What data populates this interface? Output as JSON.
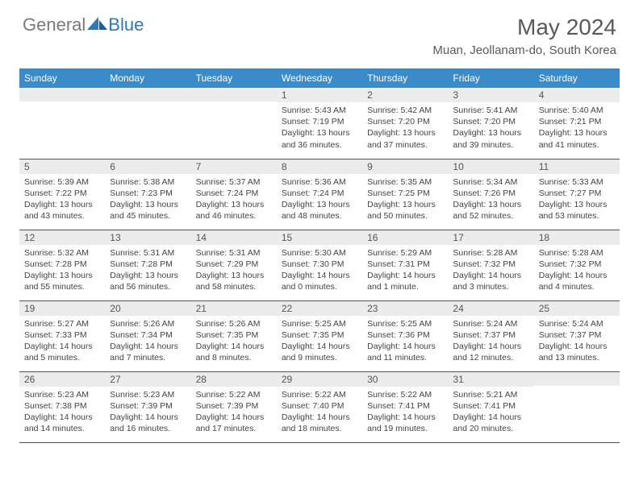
{
  "logo": {
    "general": "General",
    "blue": "Blue"
  },
  "header": {
    "title": "May 2024",
    "location": "Muan, Jeollanam-do, South Korea"
  },
  "colors": {
    "header_bg": "#3b8bc9",
    "header_text": "#ffffff",
    "daynum_bg": "#ececec",
    "border": "#2f5a80",
    "title_color": "#5a5a5a",
    "logo_gray": "#7a7a7a",
    "logo_blue": "#2f77b5"
  },
  "weekdays": [
    "Sunday",
    "Monday",
    "Tuesday",
    "Wednesday",
    "Thursday",
    "Friday",
    "Saturday"
  ],
  "weeks": [
    [
      {
        "day": "",
        "sunrise": "",
        "sunset": "",
        "daylight": ""
      },
      {
        "day": "",
        "sunrise": "",
        "sunset": "",
        "daylight": ""
      },
      {
        "day": "",
        "sunrise": "",
        "sunset": "",
        "daylight": ""
      },
      {
        "day": "1",
        "sunrise": "Sunrise: 5:43 AM",
        "sunset": "Sunset: 7:19 PM",
        "daylight": "Daylight: 13 hours and 36 minutes."
      },
      {
        "day": "2",
        "sunrise": "Sunrise: 5:42 AM",
        "sunset": "Sunset: 7:20 PM",
        "daylight": "Daylight: 13 hours and 37 minutes."
      },
      {
        "day": "3",
        "sunrise": "Sunrise: 5:41 AM",
        "sunset": "Sunset: 7:20 PM",
        "daylight": "Daylight: 13 hours and 39 minutes."
      },
      {
        "day": "4",
        "sunrise": "Sunrise: 5:40 AM",
        "sunset": "Sunset: 7:21 PM",
        "daylight": "Daylight: 13 hours and 41 minutes."
      }
    ],
    [
      {
        "day": "5",
        "sunrise": "Sunrise: 5:39 AM",
        "sunset": "Sunset: 7:22 PM",
        "daylight": "Daylight: 13 hours and 43 minutes."
      },
      {
        "day": "6",
        "sunrise": "Sunrise: 5:38 AM",
        "sunset": "Sunset: 7:23 PM",
        "daylight": "Daylight: 13 hours and 45 minutes."
      },
      {
        "day": "7",
        "sunrise": "Sunrise: 5:37 AM",
        "sunset": "Sunset: 7:24 PM",
        "daylight": "Daylight: 13 hours and 46 minutes."
      },
      {
        "day": "8",
        "sunrise": "Sunrise: 5:36 AM",
        "sunset": "Sunset: 7:24 PM",
        "daylight": "Daylight: 13 hours and 48 minutes."
      },
      {
        "day": "9",
        "sunrise": "Sunrise: 5:35 AM",
        "sunset": "Sunset: 7:25 PM",
        "daylight": "Daylight: 13 hours and 50 minutes."
      },
      {
        "day": "10",
        "sunrise": "Sunrise: 5:34 AM",
        "sunset": "Sunset: 7:26 PM",
        "daylight": "Daylight: 13 hours and 52 minutes."
      },
      {
        "day": "11",
        "sunrise": "Sunrise: 5:33 AM",
        "sunset": "Sunset: 7:27 PM",
        "daylight": "Daylight: 13 hours and 53 minutes."
      }
    ],
    [
      {
        "day": "12",
        "sunrise": "Sunrise: 5:32 AM",
        "sunset": "Sunset: 7:28 PM",
        "daylight": "Daylight: 13 hours and 55 minutes."
      },
      {
        "day": "13",
        "sunrise": "Sunrise: 5:31 AM",
        "sunset": "Sunset: 7:28 PM",
        "daylight": "Daylight: 13 hours and 56 minutes."
      },
      {
        "day": "14",
        "sunrise": "Sunrise: 5:31 AM",
        "sunset": "Sunset: 7:29 PM",
        "daylight": "Daylight: 13 hours and 58 minutes."
      },
      {
        "day": "15",
        "sunrise": "Sunrise: 5:30 AM",
        "sunset": "Sunset: 7:30 PM",
        "daylight": "Daylight: 14 hours and 0 minutes."
      },
      {
        "day": "16",
        "sunrise": "Sunrise: 5:29 AM",
        "sunset": "Sunset: 7:31 PM",
        "daylight": "Daylight: 14 hours and 1 minute."
      },
      {
        "day": "17",
        "sunrise": "Sunrise: 5:28 AM",
        "sunset": "Sunset: 7:32 PM",
        "daylight": "Daylight: 14 hours and 3 minutes."
      },
      {
        "day": "18",
        "sunrise": "Sunrise: 5:28 AM",
        "sunset": "Sunset: 7:32 PM",
        "daylight": "Daylight: 14 hours and 4 minutes."
      }
    ],
    [
      {
        "day": "19",
        "sunrise": "Sunrise: 5:27 AM",
        "sunset": "Sunset: 7:33 PM",
        "daylight": "Daylight: 14 hours and 5 minutes."
      },
      {
        "day": "20",
        "sunrise": "Sunrise: 5:26 AM",
        "sunset": "Sunset: 7:34 PM",
        "daylight": "Daylight: 14 hours and 7 minutes."
      },
      {
        "day": "21",
        "sunrise": "Sunrise: 5:26 AM",
        "sunset": "Sunset: 7:35 PM",
        "daylight": "Daylight: 14 hours and 8 minutes."
      },
      {
        "day": "22",
        "sunrise": "Sunrise: 5:25 AM",
        "sunset": "Sunset: 7:35 PM",
        "daylight": "Daylight: 14 hours and 9 minutes."
      },
      {
        "day": "23",
        "sunrise": "Sunrise: 5:25 AM",
        "sunset": "Sunset: 7:36 PM",
        "daylight": "Daylight: 14 hours and 11 minutes."
      },
      {
        "day": "24",
        "sunrise": "Sunrise: 5:24 AM",
        "sunset": "Sunset: 7:37 PM",
        "daylight": "Daylight: 14 hours and 12 minutes."
      },
      {
        "day": "25",
        "sunrise": "Sunrise: 5:24 AM",
        "sunset": "Sunset: 7:37 PM",
        "daylight": "Daylight: 14 hours and 13 minutes."
      }
    ],
    [
      {
        "day": "26",
        "sunrise": "Sunrise: 5:23 AM",
        "sunset": "Sunset: 7:38 PM",
        "daylight": "Daylight: 14 hours and 14 minutes."
      },
      {
        "day": "27",
        "sunrise": "Sunrise: 5:23 AM",
        "sunset": "Sunset: 7:39 PM",
        "daylight": "Daylight: 14 hours and 16 minutes."
      },
      {
        "day": "28",
        "sunrise": "Sunrise: 5:22 AM",
        "sunset": "Sunset: 7:39 PM",
        "daylight": "Daylight: 14 hours and 17 minutes."
      },
      {
        "day": "29",
        "sunrise": "Sunrise: 5:22 AM",
        "sunset": "Sunset: 7:40 PM",
        "daylight": "Daylight: 14 hours and 18 minutes."
      },
      {
        "day": "30",
        "sunrise": "Sunrise: 5:22 AM",
        "sunset": "Sunset: 7:41 PM",
        "daylight": "Daylight: 14 hours and 19 minutes."
      },
      {
        "day": "31",
        "sunrise": "Sunrise: 5:21 AM",
        "sunset": "Sunset: 7:41 PM",
        "daylight": "Daylight: 14 hours and 20 minutes."
      },
      {
        "day": "",
        "sunrise": "",
        "sunset": "",
        "daylight": ""
      }
    ]
  ]
}
